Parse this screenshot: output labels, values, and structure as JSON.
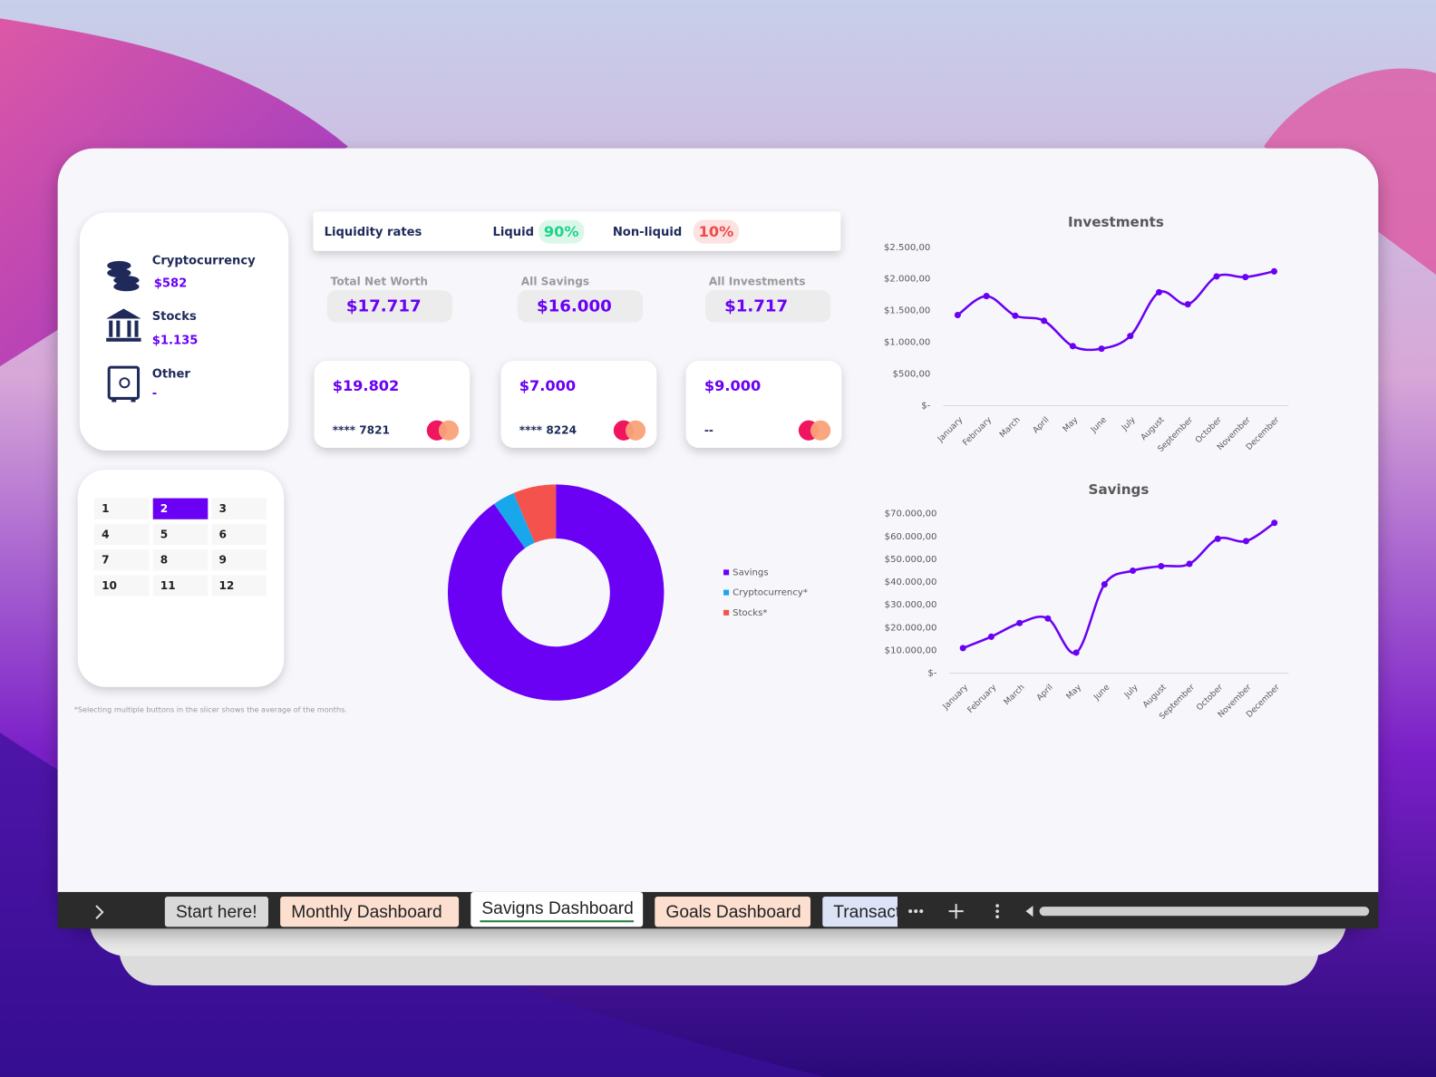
{
  "assets": [
    {
      "name": "Cryptocurrency",
      "value": "$582"
    },
    {
      "name": "Stocks",
      "value": "$1.135"
    },
    {
      "name": "Other",
      "value": "-"
    }
  ],
  "liquidity": {
    "title": "Liquidity rates",
    "liquid_label": "Liquid",
    "liquid_value": "90%",
    "nonliquid_label": "Non-liquid",
    "nonliquid_value": "10%"
  },
  "summary": [
    {
      "label": "Total Net Worth",
      "value": "$17.717"
    },
    {
      "label": "All Savings",
      "value": "$16.000"
    },
    {
      "label": "All Investments",
      "value": "$1.717"
    }
  ],
  "cards": [
    {
      "amount": "$19.802",
      "number": "**** 7821"
    },
    {
      "amount": "$7.000",
      "number": "**** 8224"
    },
    {
      "amount": "$9.000",
      "number": "--"
    }
  ],
  "slicer": {
    "buttons": [
      {
        "label": "1",
        "selected": false
      },
      {
        "label": "2",
        "selected": true
      },
      {
        "label": "3",
        "selected": false
      },
      {
        "label": "4",
        "selected": false
      },
      {
        "label": "5",
        "selected": false
      },
      {
        "label": "6",
        "selected": false
      },
      {
        "label": "7",
        "selected": false
      },
      {
        "label": "8",
        "selected": false
      },
      {
        "label": "9",
        "selected": false
      },
      {
        "label": "10",
        "selected": false
      },
      {
        "label": "11",
        "selected": false
      },
      {
        "label": "12",
        "selected": false
      }
    ]
  },
  "note": "*Selecting multiple buttons in the slicer shows the average of the months.",
  "tabs": [
    {
      "label": "Start here!",
      "active": false
    },
    {
      "label": "Monthly Dashboard",
      "active": false
    },
    {
      "label": "Savigns Dashboard",
      "active": true
    },
    {
      "label": "Goals Dashboard",
      "active": false
    },
    {
      "label": "Transact",
      "active": false
    }
  ],
  "chart_data": [
    {
      "type": "line",
      "title": "Investments",
      "categories": [
        "January",
        "February",
        "March",
        "April",
        "May",
        "June",
        "July",
        "August",
        "September",
        "October",
        "November",
        "December"
      ],
      "values": [
        1430,
        1730,
        1420,
        1340,
        940,
        900,
        1100,
        1790,
        1600,
        2040,
        2030,
        2120
      ],
      "color": "#6a00f4",
      "markers": true,
      "grid": false,
      "ylim": [
        0,
        2500
      ],
      "yticks": [
        {
          "value": 0,
          "label": "$-"
        },
        {
          "value": 500,
          "label": "$500,00"
        },
        {
          "value": 1000,
          "label": "$1.000,00"
        },
        {
          "value": 1500,
          "label": "$1.500,00"
        },
        {
          "value": 2000,
          "label": "$2.000,00"
        },
        {
          "value": 2500,
          "label": "$2.500,00"
        }
      ]
    },
    {
      "type": "line",
      "title": "Savings",
      "categories": [
        "January",
        "February",
        "March",
        "April",
        "May",
        "June",
        "July",
        "August",
        "September",
        "October",
        "November",
        "December"
      ],
      "values": [
        11000,
        16000,
        22000,
        24000,
        9000,
        39000,
        45000,
        47000,
        48000,
        59000,
        58000,
        66000
      ],
      "color": "#6a00f4",
      "markers": true,
      "grid": false,
      "ylim": [
        0,
        70000
      ],
      "yticks": [
        {
          "value": 0,
          "label": "$-"
        },
        {
          "value": 10000,
          "label": "$10.000,00"
        },
        {
          "value": 20000,
          "label": "$20.000,00"
        },
        {
          "value": 30000,
          "label": "$30.000,00"
        },
        {
          "value": 40000,
          "label": "$40.000,00"
        },
        {
          "value": 50000,
          "label": "$50.000,00"
        },
        {
          "value": 60000,
          "label": "$60.000,00"
        },
        {
          "value": 70000,
          "label": "$70.000,00"
        }
      ]
    },
    {
      "type": "donut",
      "categories": [
        "Savings",
        "Cryptocurrency*",
        "Stocks*"
      ],
      "values": [
        16000,
        582,
        1135
      ],
      "colors": [
        "#6a00f4",
        "#19a7ec",
        "#f4524d"
      ],
      "legend": "right"
    }
  ]
}
